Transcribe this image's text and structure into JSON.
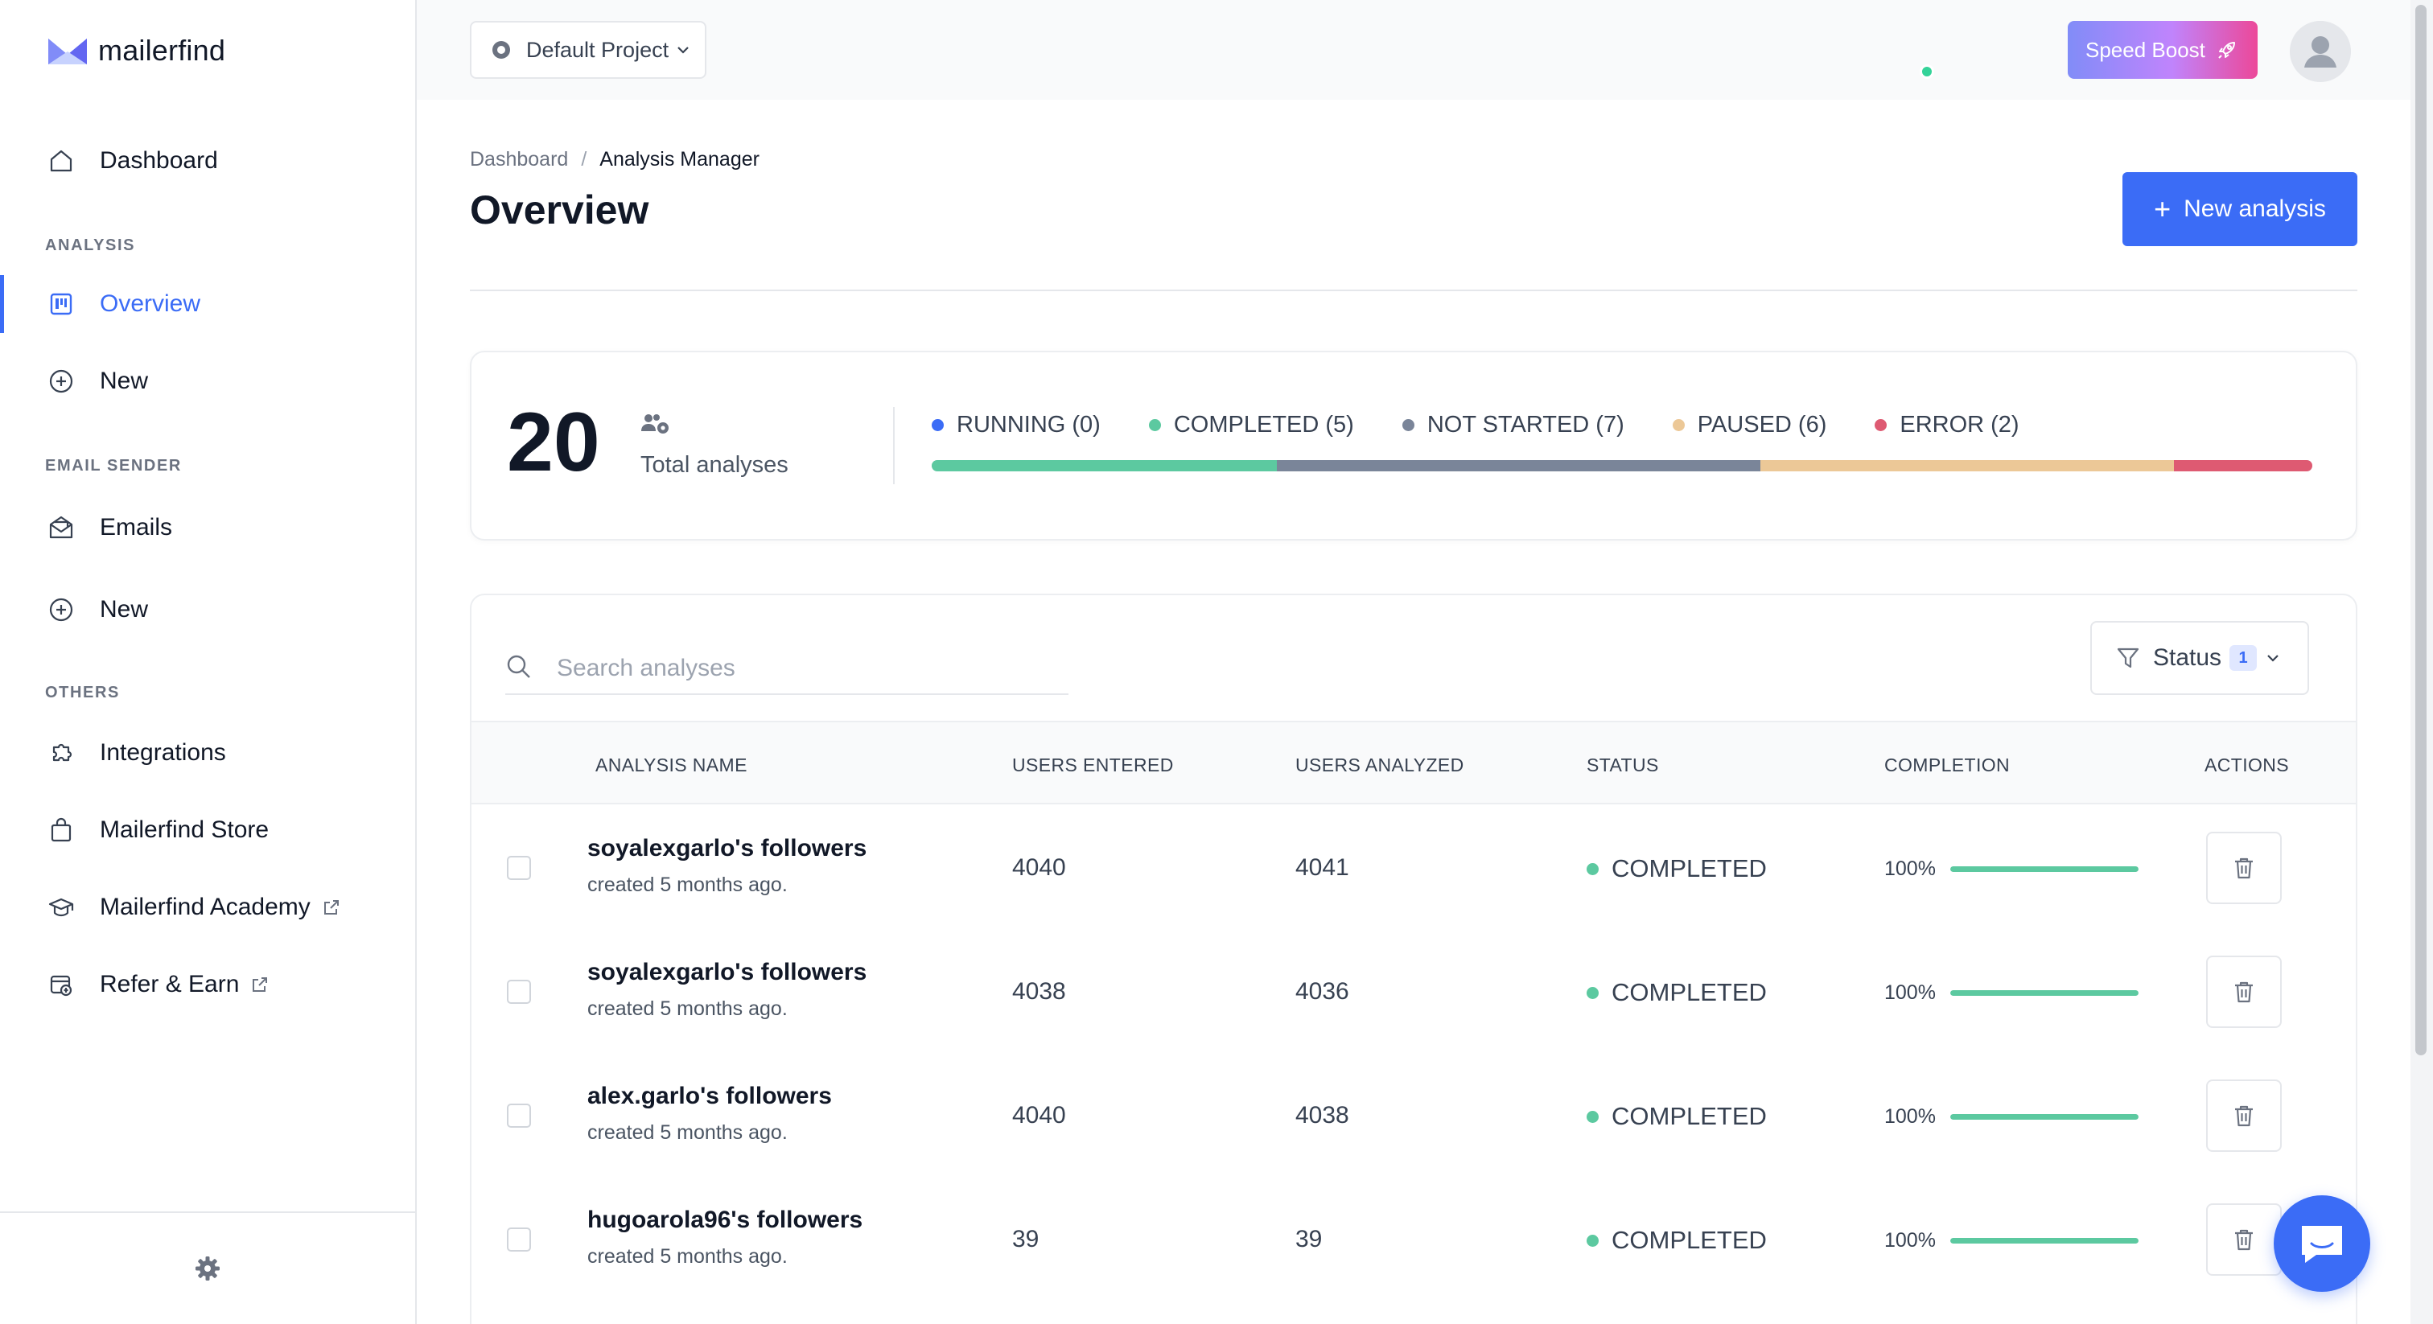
{
  "brand": {
    "name": "mailerfind"
  },
  "sidebar": {
    "dashboard": "Dashboard",
    "sections": [
      {
        "label": "ANALYSIS"
      },
      {
        "label": "EMAIL SENDER"
      },
      {
        "label": "OTHERS"
      }
    ],
    "items": [
      {
        "label": "Overview",
        "icon": "board-icon",
        "active": true
      },
      {
        "label": "New",
        "icon": "plus-circle-icon"
      },
      {
        "label": "Emails",
        "icon": "envelope-icon"
      },
      {
        "label": "New",
        "icon": "plus-circle-icon"
      },
      {
        "label": "Integrations",
        "icon": "puzzle-icon"
      },
      {
        "label": "Mailerfind Store",
        "icon": "bag-icon"
      },
      {
        "label": "Mailerfind Academy",
        "icon": "graduation-cap-icon",
        "external": true
      },
      {
        "label": "Refer & Earn",
        "icon": "gift-icon",
        "external": true
      }
    ]
  },
  "topbar": {
    "project": "Default Project",
    "speed_boost": "Speed Boost"
  },
  "breadcrumb": {
    "root": "Dashboard",
    "separator": "/",
    "current": "Analysis Manager"
  },
  "page": {
    "title": "Overview",
    "new_button": "New analysis"
  },
  "stats": {
    "total": "20",
    "total_label": "Total analyses",
    "legend": [
      {
        "label": "RUNNING (0)",
        "color": "#3b6cf6",
        "count": 0
      },
      {
        "label": "COMPLETED (5)",
        "color": "#5cc9a0",
        "count": 5
      },
      {
        "label": "NOT STARTED (7)",
        "color": "#7a8599",
        "count": 7
      },
      {
        "label": "PAUSED (6)",
        "color": "#ecc897",
        "count": 6
      },
      {
        "label": "ERROR (2)",
        "color": "#de5a72",
        "count": 2
      }
    ]
  },
  "search": {
    "placeholder": "Search analyses"
  },
  "filter": {
    "label": "Status",
    "count": "1"
  },
  "table": {
    "columns": [
      "ANALYSIS NAME",
      "USERS ENTERED",
      "USERS ANALYZED",
      "STATUS",
      "COMPLETION",
      "ACTIONS"
    ],
    "rows": [
      {
        "name": "soyalexgarlo's followers",
        "created": "created 5 months ago.",
        "entered": "4040",
        "analyzed": "4041",
        "status": "COMPLETED",
        "completion": "100%",
        "progress": 1.0
      },
      {
        "name": "soyalexgarlo's followers",
        "created": "created 5 months ago.",
        "entered": "4038",
        "analyzed": "4036",
        "status": "COMPLETED",
        "completion": "100%",
        "progress": 1.0
      },
      {
        "name": "alex.garlo's followers",
        "created": "created 5 months ago.",
        "entered": "4040",
        "analyzed": "4038",
        "status": "COMPLETED",
        "completion": "100%",
        "progress": 1.0
      },
      {
        "name": "hugoarola96's followers",
        "created": "created 5 months ago.",
        "entered": "39",
        "analyzed": "39",
        "status": "COMPLETED",
        "completion": "100%",
        "progress": 1.0
      }
    ]
  },
  "colors": {
    "accent": "#3b6cf6",
    "completed": "#5cc9a0"
  }
}
